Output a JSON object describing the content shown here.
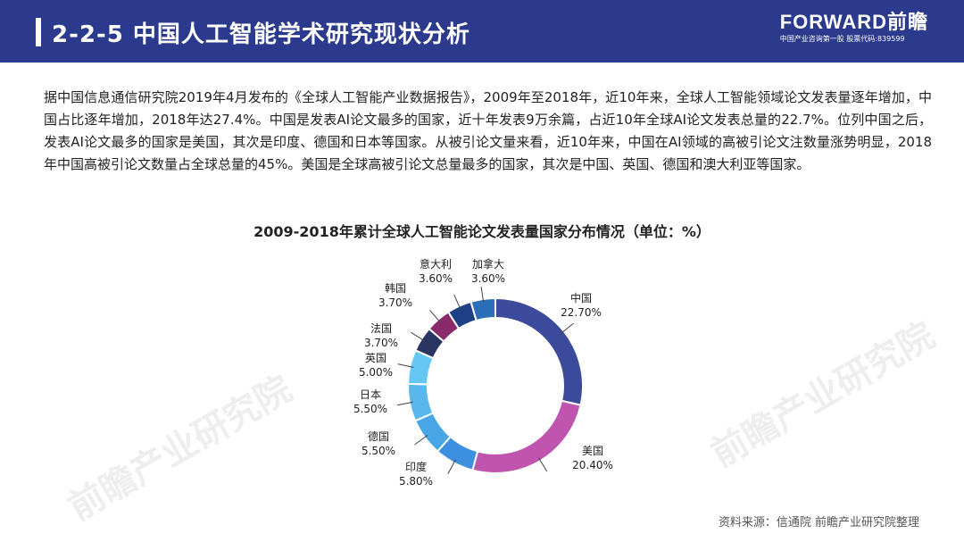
{
  "header": {
    "title": "2-2-5 中国人工智能学术研究现状分析",
    "brand_logo": "FORWARD前瞻",
    "brand_sub": "中国产业咨询第一股  股票代码:839599"
  },
  "watermark": "前瞻产业研究院",
  "paragraph": "据中国信息通信研究院2019年4月发布的《全球人工智能产业数据报告》，2009年至2018年，近10年来，全球人工智能领域论文发表量逐年增加，中国占比逐年增加，2018年达27.4%。中国是发表AI论文最多的国家，近十年发表9万余篇，占近10年全球AI论文发表总量的22.7%。位列中国之后，发表AI论文最多的国家是美国，其次是印度、德国和日本等国家。从被引论文量来看，近10年来，中国在AI领域的高被引论文注数量涨势明显，2018年中国高被引论文数量占全球总量的45%。美国是全球高被引论文总量最多的国家，其次是中国、英国、德国和澳大利亚等国家。",
  "chart_data": {
    "type": "pie",
    "title": "2009-2018年累计全球人工智能论文发表量国家分布情况（单位：%）",
    "slices": [
      {
        "label": "中国",
        "value": 22.7,
        "value_text": "22.70%",
        "color": "#3b4a9b"
      },
      {
        "label": "美国",
        "value": 20.4,
        "value_text": "20.40%",
        "color": "#c055b0"
      },
      {
        "label": "印度",
        "value": 5.8,
        "value_text": "5.80%",
        "color": "#3d8fe0"
      },
      {
        "label": "德国",
        "value": 5.5,
        "value_text": "5.50%",
        "color": "#48a6e6"
      },
      {
        "label": "日本",
        "value": 5.5,
        "value_text": "5.50%",
        "color": "#5ab8ee"
      },
      {
        "label": "英国",
        "value": 5.0,
        "value_text": "5.00%",
        "color": "#65c7f3"
      },
      {
        "label": "法国",
        "value": 3.7,
        "value_text": "3.70%",
        "color": "#2a3561"
      },
      {
        "label": "韩国",
        "value": 3.7,
        "value_text": "3.70%",
        "color": "#8a2a6a"
      },
      {
        "label": "意大利",
        "value": 3.6,
        "value_text": "3.60%",
        "color": "#1c3f86"
      },
      {
        "label": "加拿大",
        "value": 3.6,
        "value_text": "3.60%",
        "color": "#2b6fb8"
      }
    ]
  },
  "source": "资料来源：信通院 前瞻产业研究院整理"
}
